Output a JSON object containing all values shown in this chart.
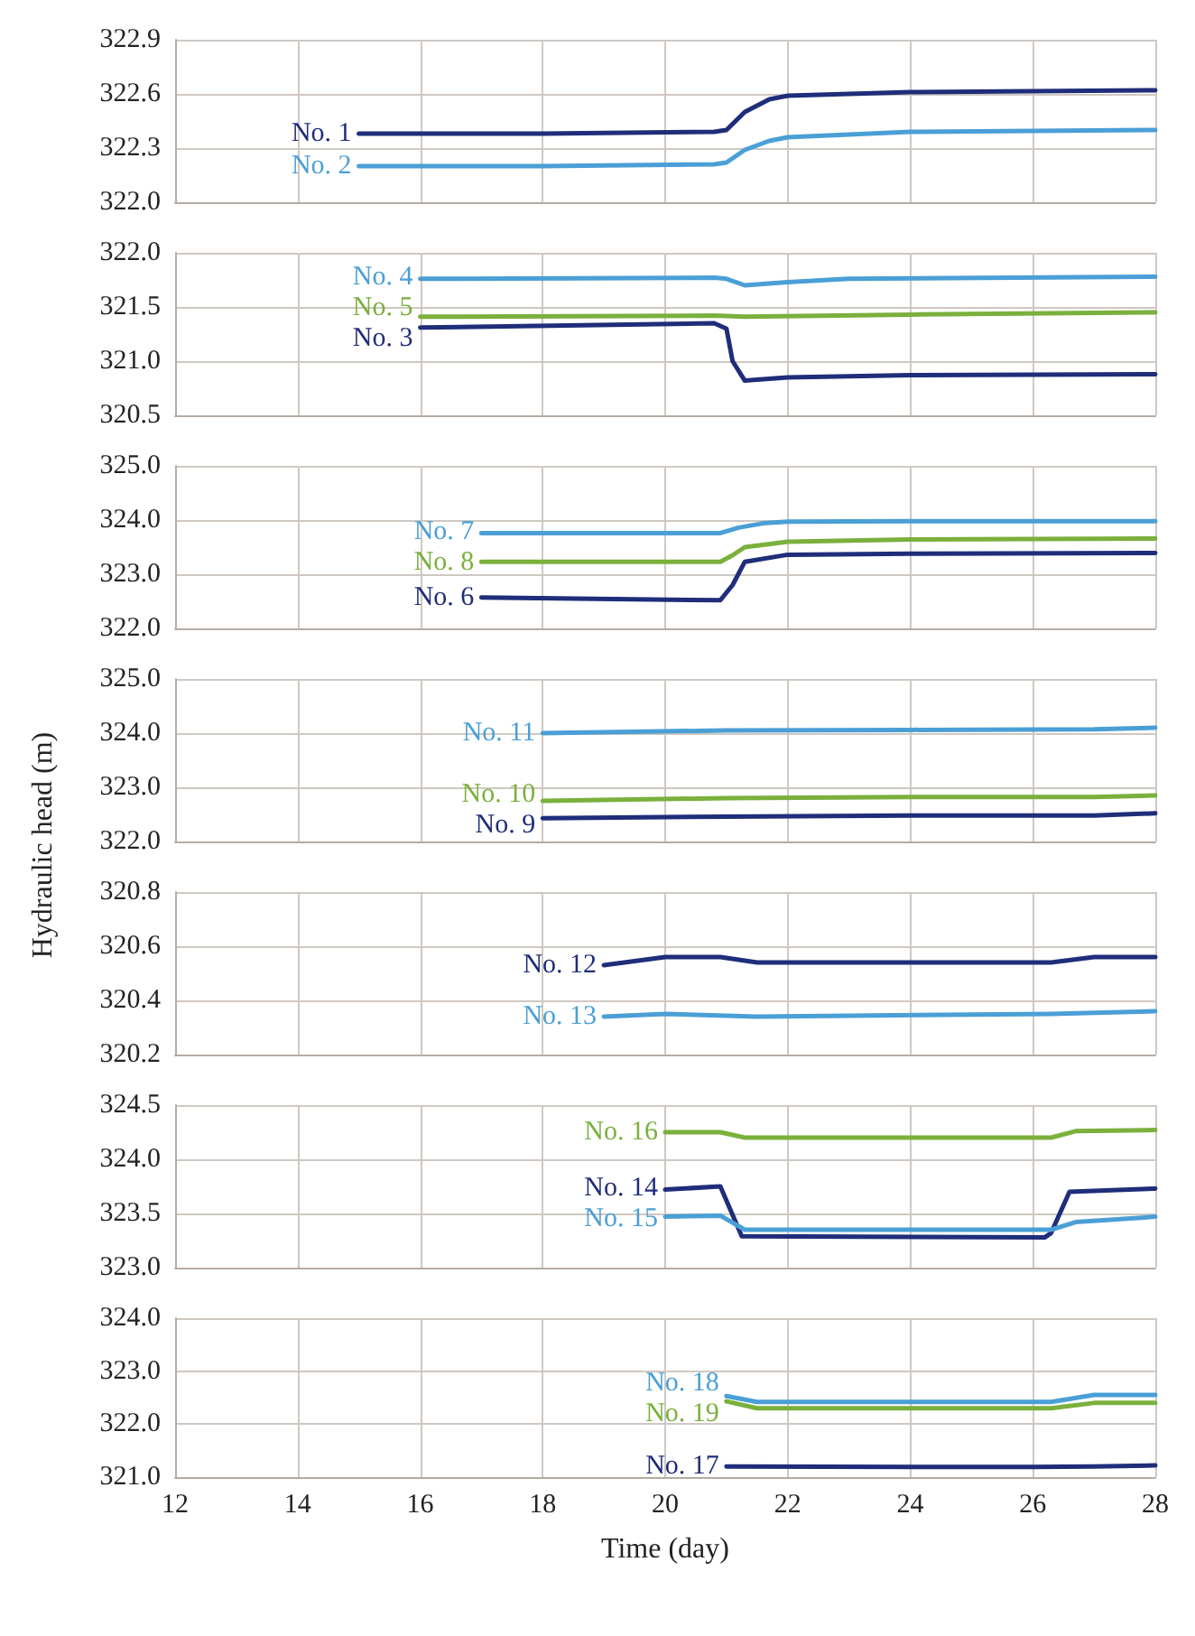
{
  "chart_data": [
    {
      "type": "line",
      "xlim": [
        12,
        28
      ],
      "xticks": [
        12,
        14,
        16,
        18,
        20,
        22,
        24,
        26,
        28
      ],
      "ylim": [
        322.0,
        322.9
      ],
      "yticks": [
        {
          "value": 322,
          "label": "322.0"
        },
        322.3,
        322.6,
        322.9
      ],
      "grid": true,
      "tick_labels": "y",
      "legend": false,
      "marker": "none",
      "line_style": "solid",
      "series": [
        {
          "name": "No. 1",
          "color": "#1f2d7a",
          "x": [
            15,
            18,
            20.8,
            21.0,
            21.3,
            21.7,
            22,
            24,
            28
          ],
          "values": [
            322.38,
            322.38,
            322.39,
            322.4,
            322.5,
            322.57,
            322.59,
            322.61,
            322.62
          ]
        },
        {
          "name": "No. 2",
          "color": "#4a9fd6",
          "x": [
            15,
            18,
            20.8,
            21.0,
            21.3,
            21.7,
            22,
            24,
            28
          ],
          "values": [
            322.2,
            322.2,
            322.21,
            322.22,
            322.29,
            322.34,
            322.36,
            322.39,
            322.4
          ]
        }
      ]
    },
    {
      "type": "line",
      "xlim": [
        12,
        28
      ],
      "xticks": [
        12,
        14,
        16,
        18,
        20,
        22,
        24,
        26,
        28
      ],
      "ylim": [
        320.5,
        322.0
      ],
      "yticks": [
        320.5,
        {
          "value": 321,
          "label": "321.0"
        },
        321.5,
        {
          "value": 322,
          "label": "322.0"
        }
      ],
      "grid": true,
      "tick_labels": "y",
      "legend": false,
      "marker": "none",
      "line_style": "solid",
      "series": [
        {
          "name": "No. 4",
          "color": "#4a9fd6",
          "x": [
            16,
            20.8,
            21.0,
            21.3,
            22,
            23,
            28
          ],
          "values": [
            321.76,
            321.77,
            321.76,
            321.7,
            321.73,
            321.76,
            321.78
          ]
        },
        {
          "name": "No. 5",
          "color": "#7ab03c",
          "x": [
            16,
            20.8,
            21.3,
            24,
            28
          ],
          "values": [
            321.41,
            321.42,
            321.41,
            321.43,
            321.45
          ]
        },
        {
          "name": "No. 3",
          "color": "#1f2d7a",
          "x": [
            16,
            20.8,
            21.0,
            21.1,
            21.3,
            22,
            24,
            28
          ],
          "values": [
            321.31,
            321.35,
            321.3,
            321.0,
            320.82,
            320.85,
            320.87,
            320.88
          ]
        }
      ]
    },
    {
      "type": "line",
      "xlim": [
        12,
        28
      ],
      "xticks": [
        12,
        14,
        16,
        18,
        20,
        22,
        24,
        26,
        28
      ],
      "ylim": [
        322.0,
        325.0
      ],
      "yticks": [
        {
          "value": 322,
          "label": "322.0"
        },
        {
          "value": 323,
          "label": "323.0"
        },
        {
          "value": 324,
          "label": "324.0"
        },
        {
          "value": 325,
          "label": "325.0"
        }
      ],
      "grid": true,
      "tick_labels": "y",
      "legend": false,
      "marker": "none",
      "line_style": "solid",
      "series": [
        {
          "name": "No. 7",
          "color": "#4a9fd6",
          "x": [
            17,
            20.9,
            21.2,
            21.6,
            22,
            24,
            28
          ],
          "values": [
            323.76,
            323.76,
            323.86,
            323.94,
            323.97,
            323.98,
            323.98
          ]
        },
        {
          "name": "No. 8",
          "color": "#7ab03c",
          "x": [
            17,
            20.9,
            21.1,
            21.3,
            22,
            24,
            28
          ],
          "values": [
            323.23,
            323.23,
            323.35,
            323.5,
            323.6,
            323.64,
            323.66
          ]
        },
        {
          "name": "No. 6",
          "color": "#1f2d7a",
          "x": [
            17,
            20.9,
            21.1,
            21.3,
            22,
            24,
            28
          ],
          "values": [
            322.57,
            322.52,
            322.8,
            323.23,
            323.36,
            323.38,
            323.39
          ]
        }
      ]
    },
    {
      "type": "line",
      "xlim": [
        12,
        28
      ],
      "xticks": [
        12,
        14,
        16,
        18,
        20,
        22,
        24,
        26,
        28
      ],
      "ylim": [
        322.0,
        325.0
      ],
      "yticks": [
        {
          "value": 322,
          "label": "322.0"
        },
        {
          "value": 323,
          "label": "323.0"
        },
        {
          "value": 324,
          "label": "324.0"
        },
        {
          "value": 325,
          "label": "325.0"
        }
      ],
      "ylabel": "Hydraulic head (m)",
      "grid": true,
      "tick_labels": "y",
      "legend": false,
      "marker": "none",
      "line_style": "solid",
      "series": [
        {
          "name": "No. 11",
          "color": "#4a9fd6",
          "x": [
            18,
            21,
            24,
            27,
            28
          ],
          "values": [
            324.0,
            324.05,
            324.06,
            324.07,
            324.1
          ]
        },
        {
          "name": "No. 10",
          "color": "#7ab03c",
          "x": [
            18,
            21,
            24,
            27,
            28
          ],
          "values": [
            322.75,
            322.8,
            322.82,
            322.82,
            322.85
          ]
        },
        {
          "name": "No. 9",
          "color": "#1f2d7a",
          "x": [
            18,
            21,
            24,
            27,
            28
          ],
          "values": [
            322.43,
            322.46,
            322.48,
            322.48,
            322.52
          ]
        }
      ]
    },
    {
      "type": "line",
      "xlim": [
        12,
        28
      ],
      "xticks": [
        12,
        14,
        16,
        18,
        20,
        22,
        24,
        26,
        28
      ],
      "ylim": [
        320.2,
        320.8
      ],
      "yticks": [
        320.2,
        320.4,
        320.6,
        320.8
      ],
      "grid": true,
      "tick_labels": "y",
      "legend": false,
      "marker": "none",
      "line_style": "solid",
      "series": [
        {
          "name": "No. 12",
          "color": "#1f2d7a",
          "x": [
            19,
            20,
            20.9,
            21.5,
            26.3,
            27,
            28
          ],
          "values": [
            320.53,
            320.56,
            320.56,
            320.54,
            320.54,
            320.56,
            320.56
          ]
        },
        {
          "name": "No. 13",
          "color": "#4a9fd6",
          "x": [
            19,
            20,
            21.5,
            26.3,
            28
          ],
          "values": [
            320.34,
            320.35,
            320.34,
            320.35,
            320.36
          ]
        }
      ]
    },
    {
      "type": "line",
      "xlim": [
        12,
        28
      ],
      "xticks": [
        12,
        14,
        16,
        18,
        20,
        22,
        24,
        26,
        28
      ],
      "ylim": [
        323.0,
        324.5
      ],
      "yticks": [
        {
          "value": 323,
          "label": "323.0"
        },
        323.5,
        {
          "value": 324,
          "label": "324.0"
        },
        324.5
      ],
      "grid": true,
      "tick_labels": "y",
      "legend": false,
      "marker": "none",
      "line_style": "solid",
      "series": [
        {
          "name": "No. 16",
          "color": "#7ab03c",
          "x": [
            20,
            20.9,
            21.3,
            26.3,
            26.7,
            28
          ],
          "values": [
            324.25,
            324.25,
            324.2,
            324.2,
            324.26,
            324.27
          ]
        },
        {
          "name": "No. 14",
          "color": "#1f2d7a",
          "x": [
            20,
            20.9,
            21.25,
            26.2,
            26.3,
            26.6,
            28
          ],
          "values": [
            323.72,
            323.75,
            323.29,
            323.28,
            323.32,
            323.7,
            323.73
          ]
        },
        {
          "name": "No. 15",
          "color": "#4a9fd6",
          "x": [
            20,
            20.9,
            21.3,
            26.3,
            26.7,
            28
          ],
          "values": [
            323.47,
            323.48,
            323.35,
            323.35,
            323.42,
            323.47
          ]
        }
      ]
    },
    {
      "type": "line",
      "xlim": [
        12,
        28
      ],
      "xticks": [
        12,
        14,
        16,
        18,
        20,
        22,
        24,
        26,
        28
      ],
      "ylim": [
        321.0,
        324.0
      ],
      "yticks": [
        {
          "value": 321,
          "label": "321.0"
        },
        {
          "value": 322,
          "label": "322.0"
        },
        {
          "value": 323,
          "label": "323.0"
        },
        {
          "value": 324,
          "label": "324.0"
        }
      ],
      "xlabel": "Time (day)",
      "grid": true,
      "legend": false,
      "marker": "none",
      "line_style": "solid",
      "series": [
        {
          "name": "No. 18",
          "color": "#4a9fd6",
          "x": [
            21,
            21.5,
            26.3,
            27,
            28
          ],
          "values": [
            322.53,
            322.42,
            322.42,
            322.55,
            322.55
          ]
        },
        {
          "name": "No. 19",
          "color": "#7ab03c",
          "x": [
            21,
            21.5,
            26.3,
            27,
            28
          ],
          "values": [
            322.43,
            322.3,
            322.3,
            322.4,
            322.4
          ]
        },
        {
          "name": "No. 17",
          "color": "#1f2d7a",
          "x": [
            21,
            26,
            27,
            28
          ],
          "values": [
            321.2,
            321.19,
            321.2,
            321.22
          ]
        }
      ]
    }
  ]
}
